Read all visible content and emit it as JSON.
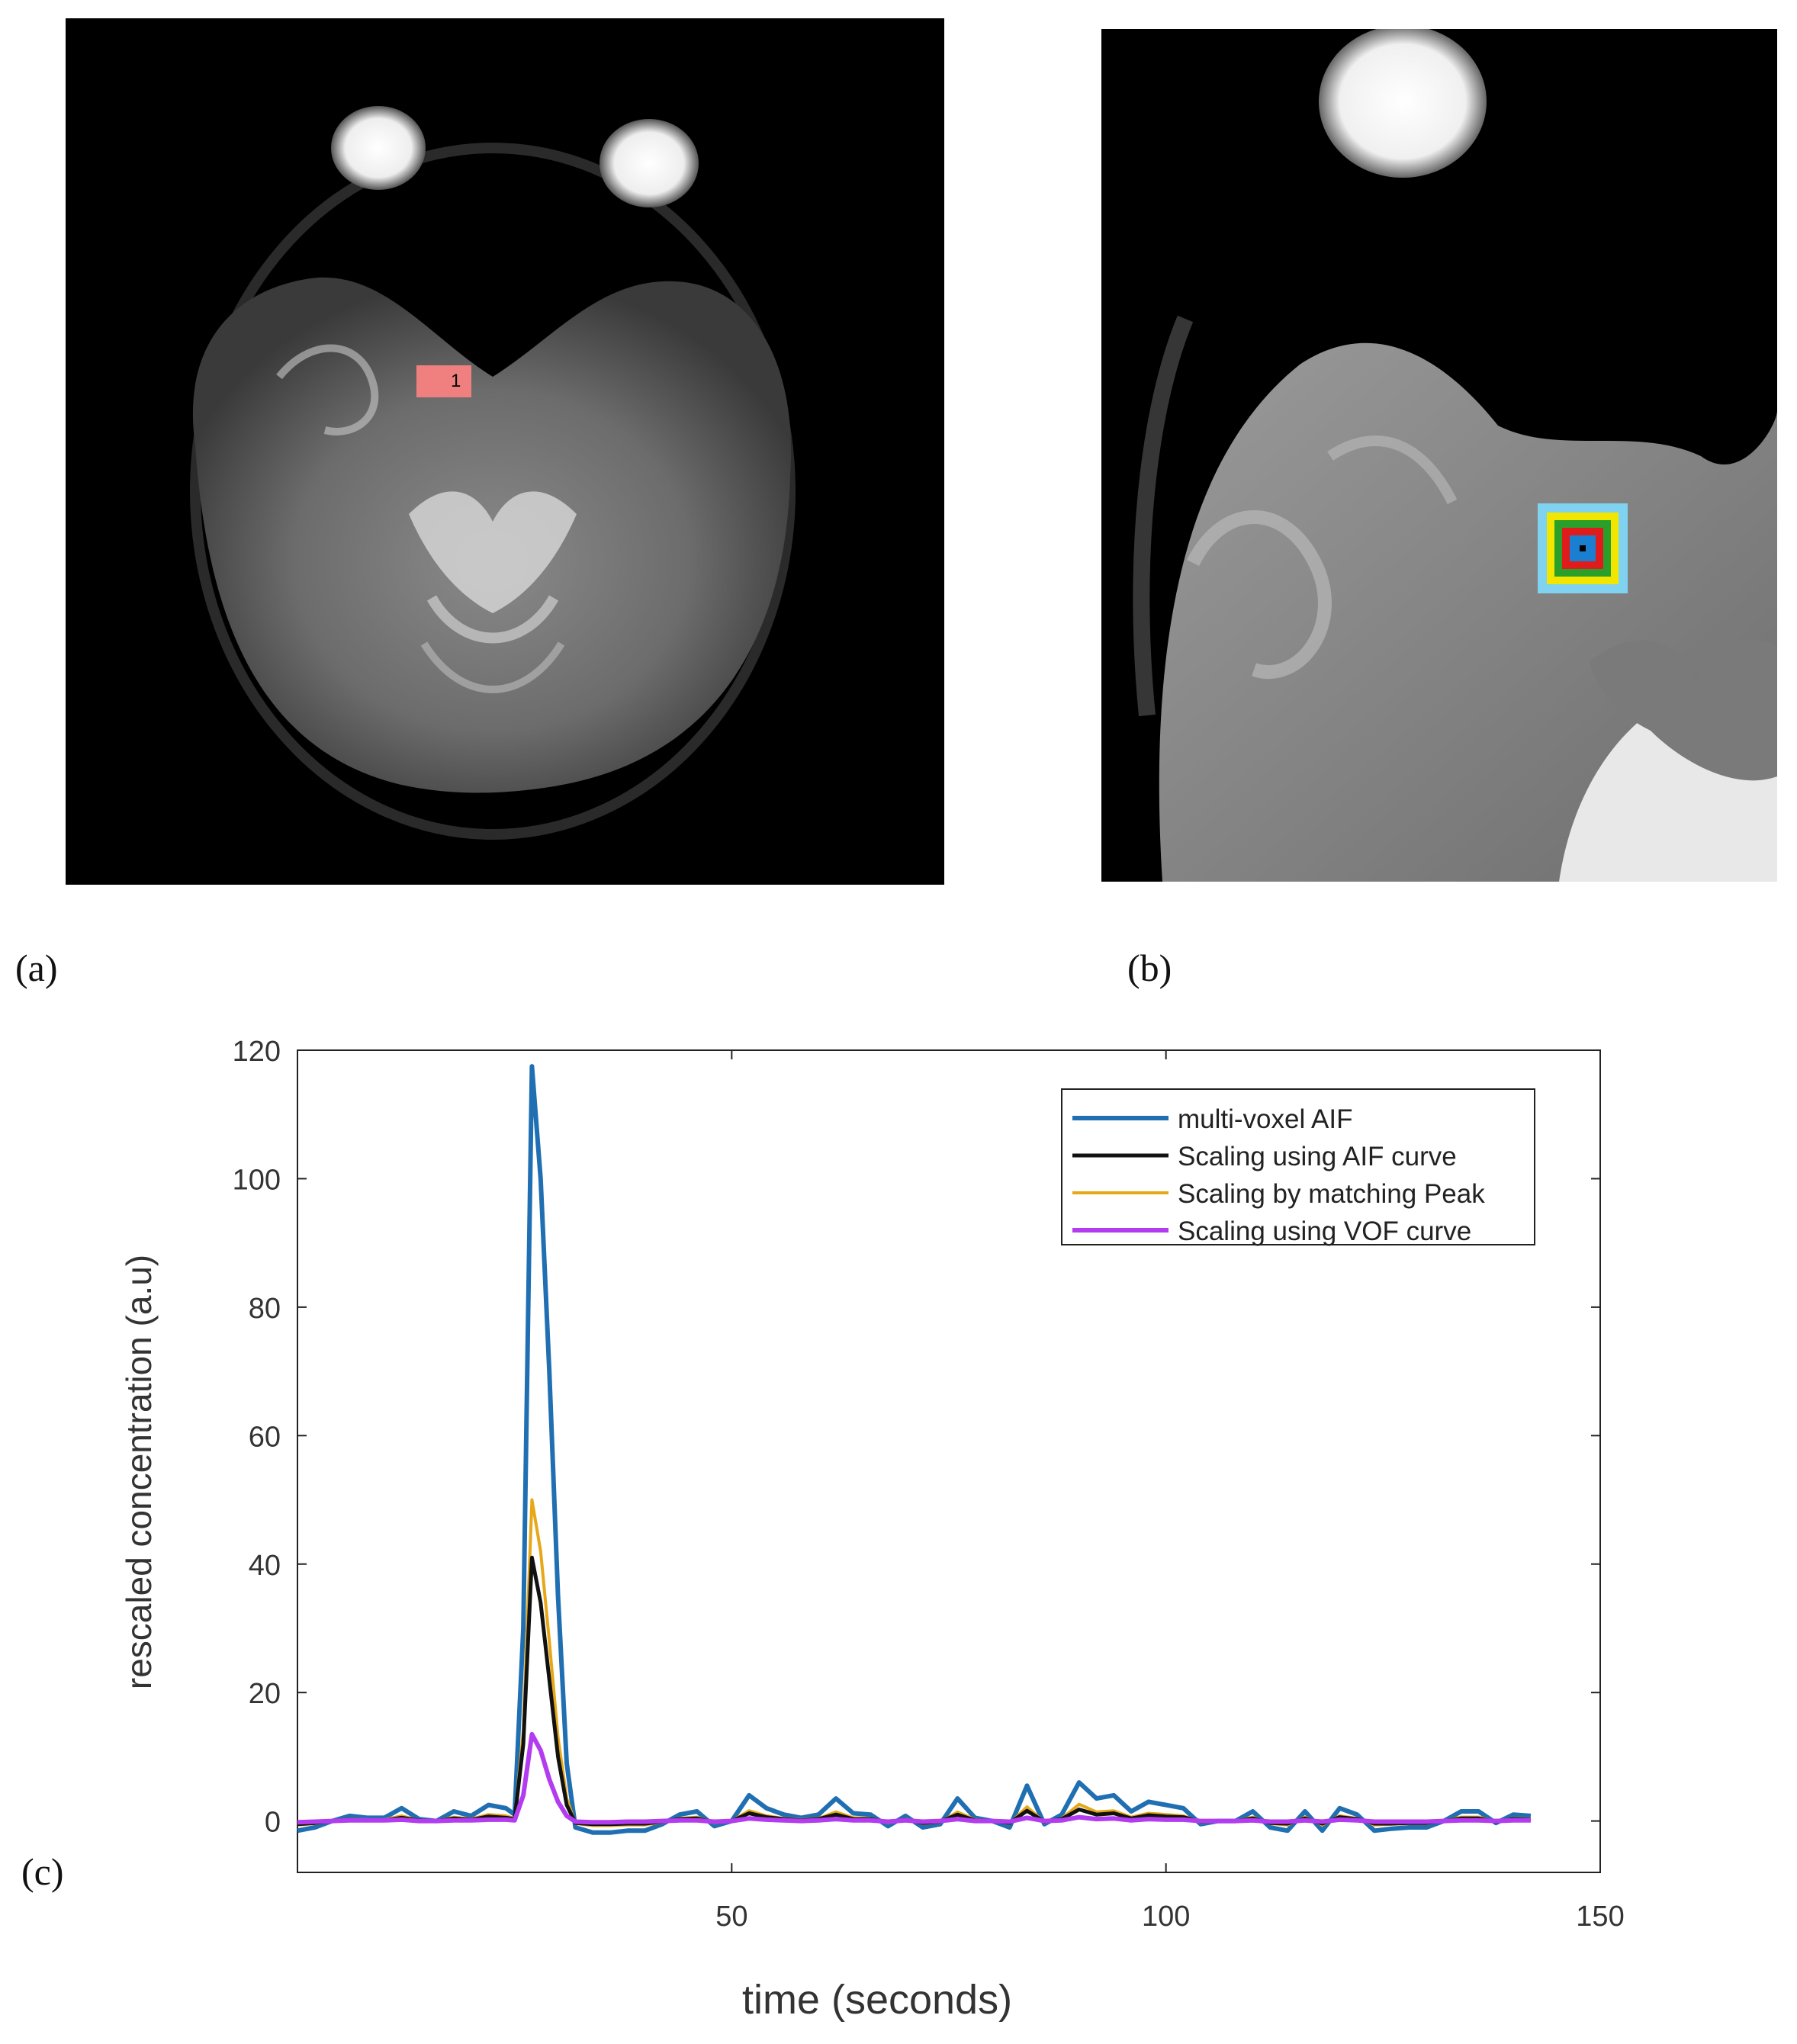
{
  "panels": {
    "a": {
      "label": "(a)",
      "roi_label": "1"
    },
    "b": {
      "label": "(b)"
    },
    "c": {
      "label": "(c)"
    }
  },
  "colors": {
    "aif": "#1f6fb2",
    "aif_scaled": "#111111",
    "peak_scaled": "#e6a817",
    "vof_scaled": "#b43cf0",
    "roi_red": "#f08080",
    "box_cyan": "#7fd3f0",
    "box_yellow": "#f2e600",
    "box_green": "#2aa02a",
    "box_red": "#e01b1b",
    "box_blue": "#1a7fd0"
  },
  "chart_data": {
    "type": "line",
    "xlabel": "time (seconds)",
    "ylabel": "rescaled concentration (a.u)",
    "xlim": [
      0,
      150
    ],
    "ylim": [
      -8,
      120
    ],
    "xticks": [
      50,
      100,
      150
    ],
    "yticks": [
      0,
      20,
      40,
      60,
      80,
      100,
      120
    ],
    "grid": false,
    "legend_position": "top-right",
    "x": [
      0,
      2,
      4,
      6,
      8,
      10,
      12,
      14,
      16,
      18,
      20,
      22,
      24,
      25,
      26,
      27,
      28,
      29,
      30,
      31,
      32,
      34,
      36,
      38,
      40,
      42,
      44,
      46,
      48,
      50,
      52,
      54,
      56,
      58,
      60,
      62,
      64,
      66,
      68,
      70,
      72,
      74,
      76,
      78,
      80,
      82,
      84,
      86,
      88,
      90,
      92,
      94,
      96,
      98,
      100,
      102,
      104,
      106,
      108,
      110,
      112,
      114,
      116,
      118,
      120,
      122,
      124,
      126,
      128,
      130,
      132,
      134,
      136,
      138,
      140,
      142
    ],
    "series": [
      {
        "name": "multi-voxel AIF",
        "values": [
          -1.5,
          -1,
          0,
          0.8,
          0.5,
          0.5,
          2,
          0.3,
          0,
          1.5,
          0.8,
          2.5,
          2,
          1,
          30,
          117.5,
          100,
          70,
          35,
          9,
          -1,
          -1.8,
          -1.8,
          -1.5,
          -1.5,
          -0.5,
          1,
          1.5,
          -0.8,
          0,
          4,
          2,
          1,
          0.5,
          1,
          3.5,
          1.2,
          1,
          -0.8,
          0.8,
          -1,
          -0.5,
          3.5,
          0.5,
          0,
          -1,
          5.5,
          -0.5,
          1,
          6,
          3.5,
          4,
          1.5,
          3,
          2.5,
          2,
          -0.5,
          0,
          0,
          1.5,
          -1,
          -1.5,
          1.5,
          -1.5,
          2,
          1,
          -1.5,
          -1.2,
          -1,
          -1,
          0,
          1.5,
          1.5,
          -0.3,
          1,
          0.8
        ]
      },
      {
        "name": "Scaling using AIF curve",
        "values": [
          -0.5,
          -0.3,
          0,
          0.2,
          0.1,
          0.1,
          0.5,
          0.1,
          0,
          0.4,
          0.2,
          0.7,
          0.5,
          0.3,
          12,
          41,
          34,
          22,
          10,
          2.5,
          -0.3,
          -0.5,
          -0.5,
          -0.4,
          -0.4,
          -0.1,
          0.3,
          0.4,
          -0.2,
          0,
          1.2,
          0.6,
          0.3,
          0.1,
          0.3,
          1,
          0.3,
          0.3,
          -0.2,
          0.2,
          -0.3,
          -0.1,
          1,
          0.1,
          0,
          -0.3,
          1.6,
          -0.1,
          0.3,
          1.8,
          1,
          1.2,
          0.4,
          0.9,
          0.7,
          0.6,
          -0.1,
          0,
          0,
          0.4,
          -0.3,
          -0.4,
          0.4,
          -0.4,
          0.6,
          0.3,
          -0.4,
          -0.4,
          -0.3,
          -0.3,
          0,
          0.4,
          0.4,
          -0.1,
          0.3,
          0.2
        ]
      },
      {
        "name": "Scaling by matching Peak",
        "values": [
          -0.6,
          -0.4,
          0,
          0.3,
          0.2,
          0.2,
          0.8,
          0.1,
          0,
          0.6,
          0.3,
          1,
          0.8,
          0.4,
          14,
          50,
          42,
          28,
          13,
          3.5,
          -0.4,
          -0.7,
          -0.7,
          -0.6,
          -0.6,
          -0.2,
          0.4,
          0.6,
          -0.3,
          0,
          1.6,
          0.8,
          0.4,
          0.2,
          0.4,
          1.4,
          0.5,
          0.4,
          -0.3,
          0.3,
          -0.4,
          -0.2,
          1.4,
          0.2,
          0,
          -0.4,
          2.2,
          -0.2,
          0.4,
          2.6,
          1.4,
          1.6,
          0.6,
          1.2,
          1,
          0.8,
          -0.2,
          0,
          0,
          0.6,
          -0.4,
          -0.6,
          0.6,
          -0.6,
          0.8,
          0.4,
          -0.6,
          -0.5,
          -0.4,
          -0.4,
          0,
          0.6,
          0.6,
          -0.1,
          0.4,
          0.3
        ]
      },
      {
        "name": "Scaling using VOF curve",
        "values": [
          -0.2,
          -0.1,
          0,
          0.1,
          0.1,
          0.1,
          0.2,
          0,
          0,
          0.1,
          0.1,
          0.2,
          0.2,
          0.1,
          4,
          13.5,
          11,
          6.5,
          3,
          0.8,
          -0.1,
          -0.2,
          -0.2,
          -0.1,
          -0.1,
          0,
          0.1,
          0.1,
          -0.1,
          0,
          0.4,
          0.2,
          0.1,
          0,
          0.1,
          0.3,
          0.1,
          0.1,
          -0.1,
          0.1,
          -0.1,
          0,
          0.3,
          0,
          0,
          -0.1,
          0.5,
          0,
          0.1,
          0.6,
          0.3,
          0.4,
          0.1,
          0.3,
          0.2,
          0.2,
          0,
          0,
          0,
          0.1,
          -0.1,
          -0.1,
          0.1,
          -0.1,
          0.2,
          0.1,
          -0.1,
          -0.1,
          -0.1,
          -0.1,
          0,
          0.1,
          0.1,
          0,
          0.1,
          0.1
        ]
      }
    ]
  }
}
